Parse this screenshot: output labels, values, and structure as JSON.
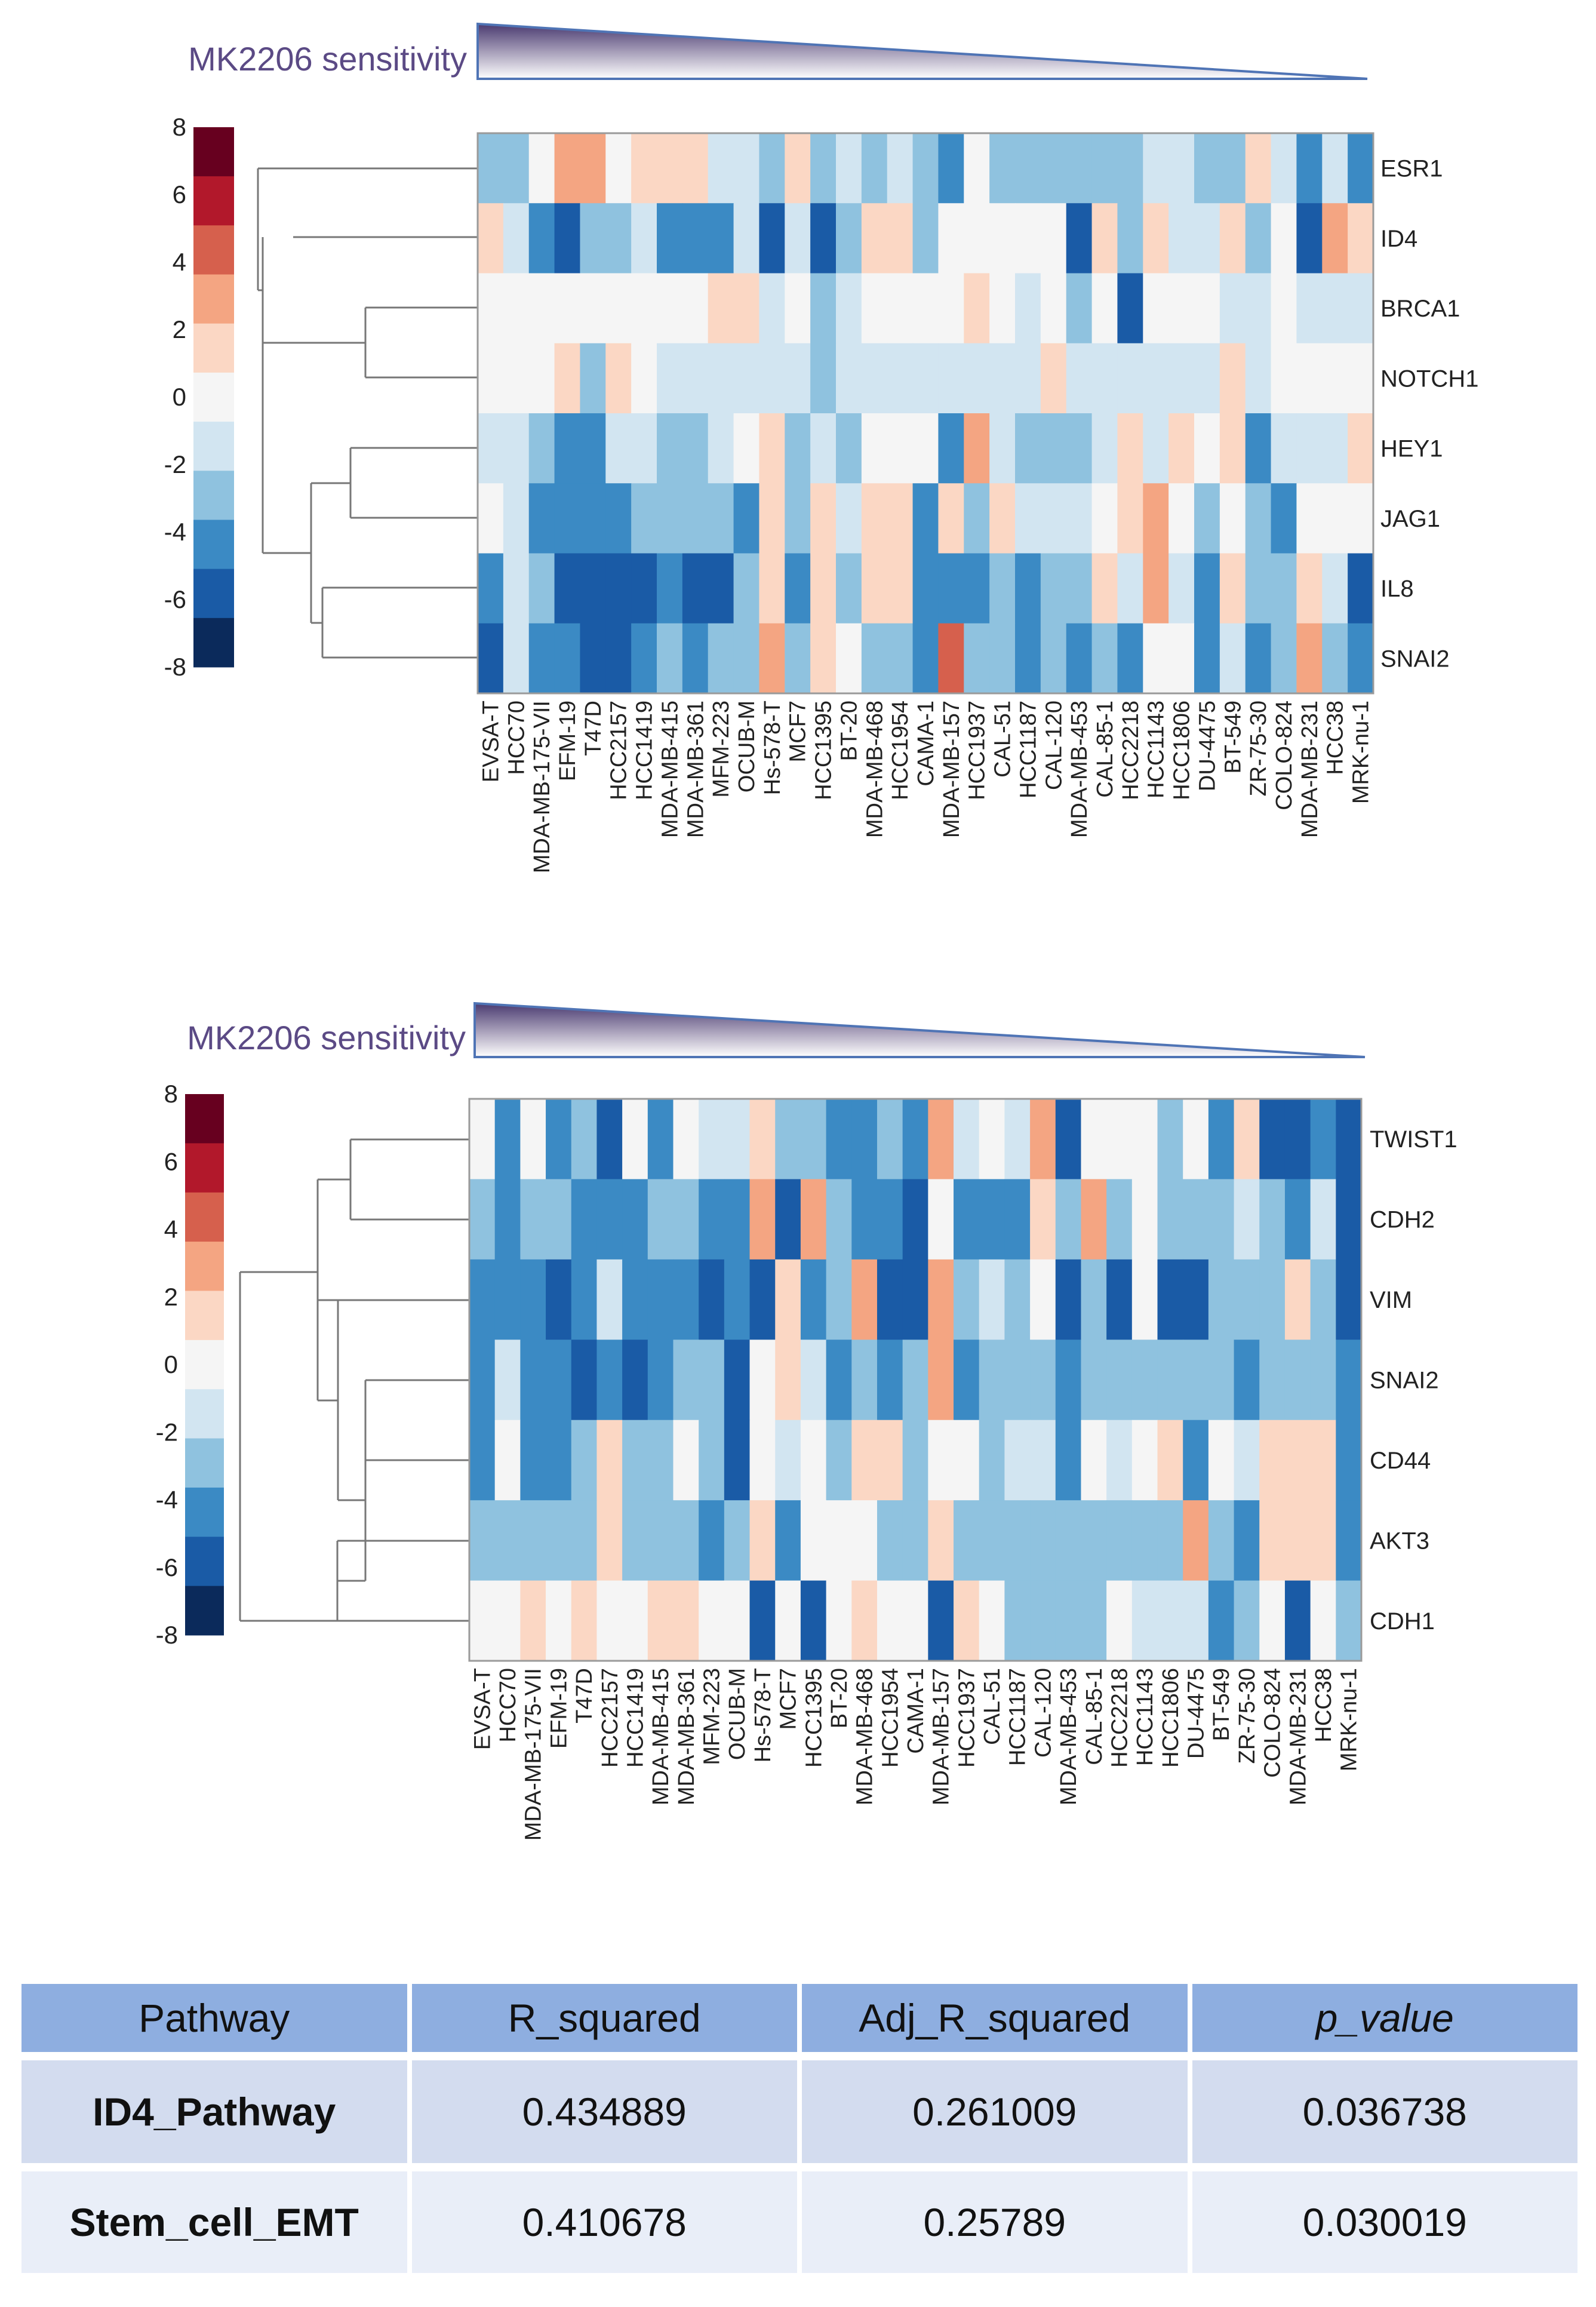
{
  "colors": {
    "scale": [
      "#0b2a5b",
      "#1a5ba6",
      "#3b8ac4",
      "#8fc2df",
      "#d2e5f1",
      "#f5f5f5",
      "#fbd7c4",
      "#f4a582",
      "#d6604d",
      "#b2182b",
      "#67001f"
    ],
    "wedge_top": "#4a3a70",
    "wedge_bottom": "#ffffff",
    "title_color": "#5b4a85",
    "table_header": "#8eaee0",
    "table_row1": "#d3dcef",
    "table_row2": "#e9eef8"
  },
  "chart_data": [
    {
      "type": "heatmap",
      "title": "MK2206 sensitivity",
      "colorbar": {
        "ticks": [
          "8",
          "6",
          "4",
          "2",
          "0",
          "-2",
          "-4",
          "-6",
          "-8"
        ],
        "range": [
          -8,
          8
        ],
        "step": 2
      },
      "columns": [
        "EVSA-T",
        "HCC70",
        "MDA-MB-175-VII",
        "EFM-19",
        "T47D",
        "HCC2157",
        "HCC1419",
        "MDA-MB-415",
        "MDA-MB-361",
        "MFM-223",
        "OCUB-M",
        "Hs-578-T",
        "MCF7",
        "HCC1395",
        "BT-20",
        "MDA-MB-468",
        "HCC1954",
        "CAMA-1",
        "MDA-MB-157",
        "HCC1937",
        "CAL-51",
        "HCC1187",
        "CAL-120",
        "MDA-MB-453",
        "CAL-85-1",
        "HCC2218",
        "HCC1143",
        "HCC1806",
        "DU-4475",
        "BT-549",
        "ZR-75-30",
        "COLO-824",
        "MDA-MB-231",
        "HCC38",
        "MRK-nu-1"
      ],
      "rows": [
        "ESR1",
        "ID4",
        "BRCA1",
        "NOTCH1",
        "HEY1",
        "JAG1",
        "IL8",
        "SNAI2"
      ],
      "values": [
        [
          -3,
          -3,
          0,
          3,
          3,
          0,
          2,
          2,
          2,
          -2,
          -2,
          -3,
          2,
          -3,
          -1,
          -3,
          -1,
          -3,
          -5,
          0,
          -3,
          -3,
          -3,
          -3,
          -3,
          -3,
          -1,
          -1,
          -3,
          -3,
          2,
          -2,
          -5,
          -2,
          -5
        ],
        [
          2,
          -1,
          -5,
          -6,
          -3,
          -3,
          -1,
          -5,
          -5,
          -5,
          -1,
          -6,
          -1,
          -6,
          -3,
          2,
          2,
          -3,
          0,
          0,
          0,
          0,
          0,
          -6,
          2,
          -3,
          1,
          -1,
          -1,
          2,
          -3,
          0,
          -7,
          3,
          2
        ],
        [
          0,
          0,
          0,
          0,
          0,
          0,
          0,
          0,
          0,
          2,
          2,
          -1,
          0,
          -3,
          -1,
          0,
          0,
          0,
          0,
          2,
          0,
          -1,
          0,
          -3,
          0,
          -6,
          0,
          0,
          0,
          -1,
          -1,
          0,
          -1,
          -1,
          -1
        ],
        [
          0,
          0,
          0,
          2,
          -3,
          2,
          0,
          -1,
          -1,
          -1,
          -1,
          -1,
          -1,
          -3,
          -1,
          -1,
          -1,
          -1,
          -1,
          -1,
          -1,
          -1,
          2,
          -1,
          -1,
          -1,
          -1,
          -1,
          -1,
          2,
          -1,
          0,
          0,
          0,
          0
        ],
        [
          -2,
          -2,
          -3,
          -5,
          -5,
          -1,
          -1,
          -3,
          -3,
          -1,
          0,
          2,
          -3,
          -1,
          -3,
          0,
          0,
          0,
          -5,
          3,
          -1,
          -3,
          -3,
          -3,
          -1,
          2,
          -1,
          2,
          0,
          2,
          -5,
          -1,
          -1,
          -1,
          2
        ],
        [
          0,
          -1,
          -5,
          -5,
          -5,
          -5,
          -3,
          -3,
          -3,
          -3,
          -5,
          2,
          -3,
          2,
          -1,
          2,
          2,
          -5,
          2,
          -3,
          2,
          -1,
          -1,
          -1,
          0,
          2,
          3,
          0,
          -3,
          0,
          -3,
          -5,
          0,
          0,
          0
        ],
        [
          -5,
          -1,
          -3,
          -6,
          -6,
          -6,
          -7,
          -5,
          -6,
          -7,
          -3,
          2,
          -5,
          2,
          -3,
          2,
          2,
          -5,
          -5,
          -5,
          -3,
          -5,
          -3,
          -3,
          2,
          -1,
          3,
          -1,
          -5,
          2,
          -3,
          -3,
          2,
          -1,
          -6
        ],
        [
          -6,
          -1,
          -5,
          -5,
          -7,
          -6,
          -5,
          -3,
          -5,
          -3,
          -3,
          3,
          -3,
          2,
          0,
          -3,
          -3,
          -5,
          4,
          -3,
          -3,
          -5,
          -3,
          -5,
          -3,
          -5,
          0,
          0,
          -5,
          -1,
          -5,
          -3,
          3,
          -3,
          -5
        ]
      ]
    },
    {
      "type": "heatmap",
      "title": "MK2206 sensitivity",
      "colorbar": {
        "ticks": [
          "8",
          "6",
          "4",
          "2",
          "0",
          "-2",
          "-4",
          "-6",
          "-8"
        ],
        "range": [
          -8,
          8
        ],
        "step": 2
      },
      "columns": [
        "EVSA-T",
        "HCC70",
        "MDA-MB-175-VII",
        "EFM-19",
        "T47D",
        "HCC2157",
        "HCC1419",
        "MDA-MB-415",
        "MDA-MB-361",
        "MFM-223",
        "OCUB-M",
        "Hs-578-T",
        "MCF7",
        "HCC1395",
        "BT-20",
        "MDA-MB-468",
        "HCC1954",
        "CAMA-1",
        "MDA-MB-157",
        "HCC1937",
        "CAL-51",
        "HCC1187",
        "CAL-120",
        "MDA-MB-453",
        "CAL-85-1",
        "HCC2218",
        "HCC1143",
        "HCC1806",
        "DU-4475",
        "BT-549",
        "ZR-75-30",
        "COLO-824",
        "MDA-MB-231",
        "HCC38",
        "MRK-nu-1"
      ],
      "rows": [
        "TWIST1",
        "CDH2",
        "VIM",
        "SNAI2",
        "CD44",
        "AKT3",
        "CDH1"
      ],
      "values": [
        [
          0,
          -5,
          0,
          -5,
          -3,
          -6,
          0,
          -5,
          0,
          -1,
          -1,
          2,
          -3,
          -3,
          -5,
          -5,
          -3,
          -5,
          3,
          -1,
          0,
          -1,
          3,
          -6,
          0,
          0,
          0,
          -3,
          0,
          -5,
          2,
          -6,
          -7,
          -5,
          -6
        ],
        [
          -3,
          -5,
          -3,
          -3,
          -5,
          -5,
          -5,
          -3,
          -3,
          -5,
          -5,
          3,
          -6,
          3,
          -3,
          -5,
          -5,
          -6,
          0,
          -5,
          -5,
          -5,
          2,
          -3,
          3,
          -3,
          0,
          -3,
          -3,
          -3,
          -1,
          -3,
          -5,
          -1,
          -6
        ],
        [
          -5,
          -5,
          -5,
          -6,
          -5,
          -1,
          -5,
          -5,
          -5,
          -6,
          -5,
          -6,
          2,
          -5,
          -3,
          3,
          -6,
          -6,
          3,
          -3,
          -1,
          -3,
          0,
          -7,
          -3,
          -6,
          0,
          -6,
          -6,
          -3,
          -3,
          -3,
          2,
          -3,
          -6
        ],
        [
          -5,
          -1,
          -5,
          -5,
          -7,
          -5,
          -6,
          -5,
          -3,
          -3,
          -6,
          0,
          2,
          -1,
          -5,
          -3,
          -5,
          -3,
          3,
          -5,
          -3,
          -3,
          -3,
          -5,
          -3,
          -3,
          -3,
          -3,
          -3,
          -3,
          -5,
          -3,
          -3,
          -3,
          -5
        ],
        [
          -5,
          0,
          -5,
          -5,
          -3,
          2,
          -3,
          -3,
          0,
          -3,
          -6,
          0,
          -1,
          0,
          -3,
          2,
          2,
          -3,
          0,
          0,
          -3,
          -1,
          -1,
          -5,
          0,
          -1,
          0,
          2,
          -5,
          0,
          -1,
          2,
          2,
          2,
          -5
        ],
        [
          -3,
          -3,
          -3,
          -3,
          -3,
          2,
          -3,
          -3,
          -3,
          -5,
          -3,
          2,
          -5,
          0,
          0,
          0,
          -3,
          -3,
          2,
          -3,
          -3,
          -3,
          -3,
          -3,
          -3,
          -3,
          -3,
          -3,
          3,
          -3,
          -5,
          2,
          2,
          2,
          -5
        ],
        [
          0,
          0,
          2,
          0,
          2,
          0,
          0,
          2,
          2,
          0,
          0,
          -7,
          0,
          -6,
          0,
          2,
          0,
          0,
          -6,
          2,
          0,
          -3,
          -3,
          -3,
          -3,
          0,
          -1,
          -1,
          -1,
          -5,
          -3,
          0,
          -6,
          0,
          -3
        ]
      ]
    }
  ],
  "table": {
    "headers": [
      "Pathway",
      "R_squared",
      "Adj_R_squared",
      "p_value"
    ],
    "rows": [
      [
        "ID4_Pathway",
        "0.434889",
        "0.261009",
        "0.036738"
      ],
      [
        "Stem_cell_EMT",
        "0.410678",
        "0.25789",
        "0.030019"
      ]
    ]
  }
}
